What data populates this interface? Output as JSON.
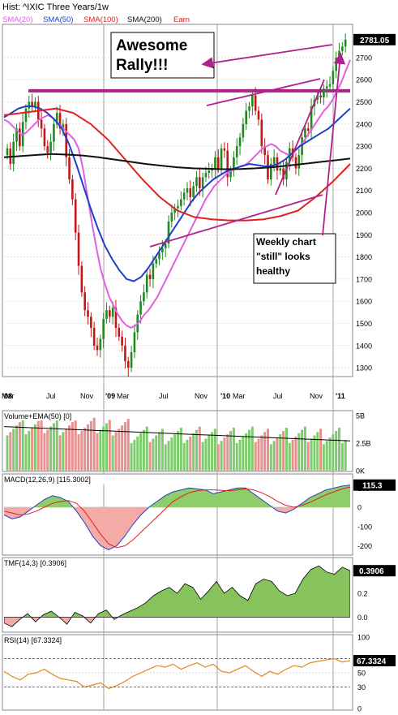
{
  "header": {
    "title": "Hist: ^IXIC Three Years/1w",
    "legend": [
      {
        "label": "SMA(20)",
        "color": "#e060e0"
      },
      {
        "label": "SMA(50)",
        "color": "#1f3fc8"
      },
      {
        "label": "SMA(100)",
        "color": "#e02020"
      },
      {
        "label": "SMA(200)",
        "color": "#111111"
      },
      {
        "label": "Earn",
        "color": "#e02020"
      }
    ]
  },
  "annotations": {
    "awesome_line1": "Awesome",
    "awesome_line2": "Rally!!!",
    "weekly_line1": "Weekly chart",
    "weekly_line2": "\"still\" looks",
    "weekly_line3": "healthy",
    "arrow_color": "#b0208a"
  },
  "colors": {
    "up": "#1f8a1f",
    "down": "#c01818",
    "macd_fill_pos": "#8fcc6a",
    "macd_fill_neg": "#f4aaa6",
    "tmf_fill_pos": "#86c35c",
    "tmf_fill_neg": "#f4aaa6",
    "rsi_line": "#e08a1a"
  },
  "chart_data": [
    {
      "type": "candlestick",
      "title": "Hist: ^IXIC Three Years/1w",
      "last_value_label": "2781.05",
      "ylim": [
        1260,
        2850
      ],
      "y_ticks": [
        1300,
        1400,
        1500,
        1600,
        1700,
        1800,
        1900,
        2000,
        2100,
        2200,
        2300,
        2400,
        2500,
        2600,
        2700
      ],
      "x_tick_labels": [
        "'08",
        "Mar",
        "Jul",
        "Nov",
        "'09",
        "Mar",
        "Jul",
        "Nov",
        "'10",
        "Mar",
        "Jul",
        "Nov",
        "'11"
      ],
      "close_series": [
        2290,
        2220,
        2320,
        2380,
        2300,
        2410,
        2470,
        2500,
        2480,
        2500,
        2420,
        2380,
        2300,
        2270,
        2320,
        2400,
        2450,
        2380,
        2400,
        2250,
        2150,
        2060,
        1910,
        1760,
        1640,
        1560,
        1530,
        1480,
        1400,
        1380,
        1430,
        1520,
        1560,
        1530,
        1570,
        1480,
        1440,
        1400,
        1330,
        1300,
        1370,
        1460,
        1540,
        1600,
        1640,
        1720,
        1700,
        1770,
        1790,
        1820,
        1840,
        1860,
        1960,
        2000,
        2020,
        2030,
        2060,
        2090,
        2110,
        2070,
        2120,
        2160,
        2110,
        2160,
        2180,
        2190,
        2200,
        2250,
        2200,
        2290,
        2280,
        2160,
        2190,
        2250,
        2300,
        2340,
        2400,
        2460,
        2480,
        2530,
        2460,
        2420,
        2300,
        2260,
        2150,
        2220,
        2250,
        2190,
        2200,
        2150,
        2230,
        2290,
        2250,
        2200,
        2260,
        2340,
        2380,
        2370,
        2480,
        2510,
        2530,
        2520,
        2560,
        2570,
        2580,
        2640,
        2700,
        2730,
        2750,
        2781
      ],
      "sma20": [
        2420,
        2410,
        2390,
        2370,
        2350,
        2360,
        2380,
        2400,
        2420,
        2430,
        2440,
        2430,
        2410,
        2390,
        2370,
        2350,
        2330,
        2290,
        2200,
        2080,
        1960,
        1850,
        1750,
        1680,
        1620,
        1580,
        1540,
        1510,
        1490,
        1480,
        1490,
        1510,
        1540,
        1560,
        1590,
        1620,
        1660,
        1700,
        1740,
        1780,
        1820,
        1860,
        1900,
        1940,
        1980,
        2020,
        2060,
        2090,
        2120,
        2140,
        2160,
        2180,
        2190,
        2200,
        2210,
        2215,
        2230,
        2250,
        2270,
        2290,
        2300,
        2310,
        2300,
        2280,
        2270,
        2260,
        2270,
        2290,
        2310,
        2340,
        2370,
        2400,
        2430,
        2460,
        2480,
        2510,
        2550,
        2590,
        2640,
        2690
      ],
      "sma50": [
        2430,
        2450,
        2470,
        2480,
        2480,
        2470,
        2450,
        2420,
        2380,
        2310,
        2220,
        2120,
        2020,
        1930,
        1850,
        1790,
        1740,
        1700,
        1690,
        1710,
        1750,
        1800,
        1850,
        1900,
        1950,
        2000,
        2050,
        2090,
        2120,
        2150,
        2170,
        2190,
        2200,
        2210,
        2220,
        2215,
        2210,
        2210,
        2220,
        2240,
        2270,
        2300,
        2320,
        2340,
        2360,
        2380,
        2410,
        2440,
        2470
      ],
      "sma100": [
        2440,
        2450,
        2460,
        2470,
        2450,
        2400,
        2330,
        2240,
        2150,
        2070,
        2010,
        1980,
        1970,
        1965,
        1965,
        1970,
        1985,
        2010,
        2070,
        2140,
        2220
      ],
      "sma200": [
        2250,
        2255,
        2260,
        2265,
        2262,
        2258,
        2250,
        2240,
        2230,
        2220,
        2212,
        2205,
        2200,
        2198,
        2196,
        2197,
        2200,
        2205,
        2212,
        2220,
        2228,
        2236,
        2244
      ],
      "reference_levels": [
        2550
      ]
    },
    {
      "type": "bar",
      "title": "Volume+EMA(50) [0]",
      "y_ticks": [
        "5B",
        "2.5B",
        "0K"
      ],
      "ylim": [
        0,
        5
      ],
      "ema_start": 4.0,
      "ema_end": 2.7
    },
    {
      "type": "line",
      "title": "MACD(12,26,9) [115.3002]",
      "last_value_label": "115.3",
      "ylim": [
        -240,
        160
      ],
      "y_ticks": [
        100,
        0,
        -100,
        -200
      ],
      "macd": [
        -40,
        -60,
        -50,
        -20,
        10,
        40,
        60,
        50,
        30,
        -20,
        -80,
        -150,
        -200,
        -220,
        -200,
        -150,
        -90,
        -40,
        0,
        30,
        60,
        80,
        90,
        100,
        95,
        90,
        70,
        80,
        90,
        100,
        100,
        70,
        40,
        10,
        -20,
        -30,
        -10,
        20,
        50,
        70,
        90,
        100,
        110,
        115
      ],
      "signal": [
        -20,
        -30,
        -40,
        -35,
        -20,
        0,
        20,
        30,
        35,
        20,
        -20,
        -80,
        -140,
        -190,
        -210,
        -200,
        -170,
        -130,
        -90,
        -50,
        -10,
        30,
        55,
        75,
        85,
        90,
        90,
        88,
        85,
        90,
        95,
        90,
        75,
        55,
        30,
        10,
        0,
        10,
        25,
        45,
        65,
        80,
        95,
        105
      ]
    },
    {
      "type": "area",
      "title": "TMF(14,3) [0.3906]",
      "last_value_label": "0.3906",
      "ylim": [
        -0.12,
        0.48
      ],
      "y_ticks": [
        0.2,
        0.0
      ],
      "values": [
        -0.05,
        -0.08,
        -0.02,
        0.03,
        -0.04,
        0.02,
        0.05,
        0.0,
        -0.06,
        0.04,
        0.01,
        -0.05,
        0.03,
        0.06,
        -0.02,
        0.02,
        0.05,
        0.08,
        0.12,
        0.18,
        0.22,
        0.25,
        0.2,
        0.28,
        0.25,
        0.15,
        0.22,
        0.3,
        0.2,
        0.25,
        0.18,
        0.14,
        0.28,
        0.32,
        0.3,
        0.22,
        0.18,
        0.2,
        0.32,
        0.4,
        0.43,
        0.38,
        0.36,
        0.42,
        0.39
      ]
    },
    {
      "type": "line",
      "title": "RSI(14) [67.3324]",
      "last_value_label": "67.3324",
      "ylim": [
        0,
        100
      ],
      "y_ticks": [
        100,
        70,
        50,
        30,
        0
      ],
      "values": [
        52,
        45,
        40,
        48,
        50,
        55,
        48,
        42,
        40,
        38,
        30,
        33,
        36,
        28,
        32,
        38,
        45,
        50,
        55,
        60,
        58,
        62,
        55,
        60,
        64,
        58,
        62,
        52,
        50,
        55,
        60,
        52,
        45,
        52,
        48,
        55,
        60,
        58,
        64,
        66,
        68,
        70,
        65,
        67
      ]
    }
  ]
}
